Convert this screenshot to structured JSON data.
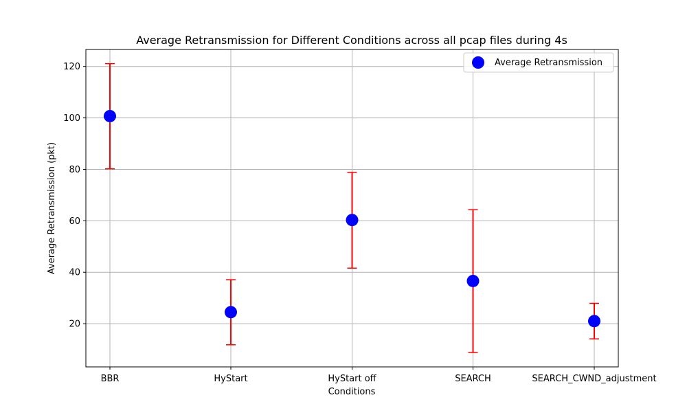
{
  "chart_data": {
    "type": "scatter",
    "title": "Average Retransmission for Different Conditions across all pcap files during 4s",
    "xlabel": "Conditions",
    "ylabel": "Average Retransmission (pkt)",
    "categories": [
      "BBR",
      "HyStart",
      "HyStart off",
      "SEARCH",
      "SEARCH_CWND_adjustment"
    ],
    "series": [
      {
        "name": "Average Retransmission",
        "values": [
          100.7,
          24.5,
          60.3,
          36.6,
          21.0
        ],
        "error_low": [
          80.2,
          11.8,
          41.6,
          8.8,
          14.1
        ],
        "error_high": [
          121.1,
          37.1,
          78.8,
          64.3,
          27.9
        ]
      }
    ],
    "ylim": [
      3.2,
      126.6
    ],
    "yticks": [
      20,
      40,
      60,
      80,
      100,
      120
    ],
    "grid": true,
    "legend_position": "top-right",
    "colors": {
      "marker": "#0000ff",
      "errorbar": "#ff0000",
      "grid": "#b0b0b0"
    }
  }
}
